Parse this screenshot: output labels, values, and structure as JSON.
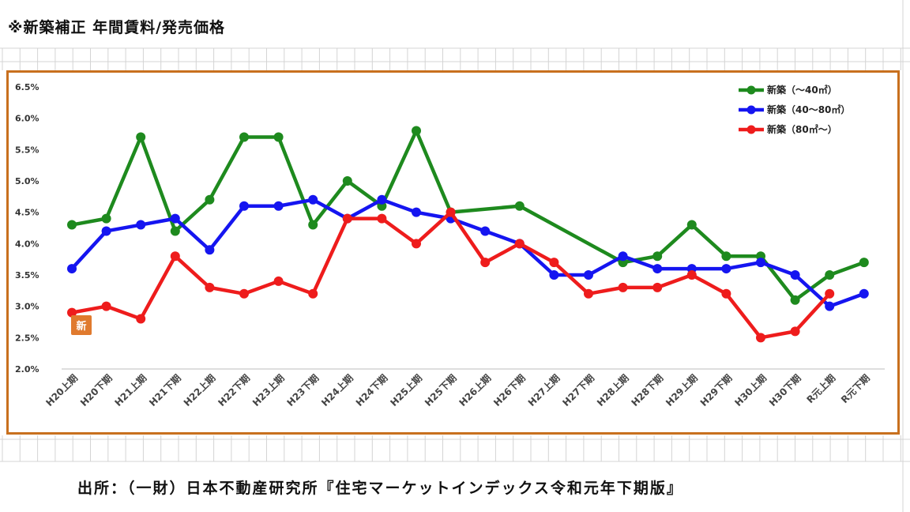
{
  "page": {
    "title": "※新築補正 年間賃料/発売価格",
    "source": "出所：（一財）日本不動産研究所『住宅マーケットインデックス令和元年下期版』"
  },
  "stamp": {
    "text": "新",
    "color": "#e07a2e"
  },
  "colors": {
    "frame": "#c8701e",
    "grid": "#d4d4d4",
    "axis": "#bdbdbd"
  },
  "chart_data": {
    "type": "line",
    "title": "",
    "xlabel": "",
    "ylabel": "",
    "categories": [
      "H20上期",
      "H20下期",
      "H21上期",
      "H21下期",
      "H22上期",
      "H22下期",
      "H23上期",
      "H23下期",
      "H24上期",
      "H24下期",
      "H25上期",
      "H25下期",
      "H26上期",
      "H26下期",
      "H27上期",
      "H27下期",
      "H28上期",
      "H28下期",
      "H29上期",
      "H29下期",
      "H30上期",
      "H30下期",
      "R元上期",
      "R元下期"
    ],
    "ylim": [
      2.0,
      6.5
    ],
    "yticks": [
      2.0,
      2.5,
      3.0,
      3.5,
      4.0,
      4.5,
      5.0,
      5.5,
      6.0,
      6.5
    ],
    "ytick_labels": [
      "2.0%",
      "2.5%",
      "3.0%",
      "3.5%",
      "4.0%",
      "4.5%",
      "5.0%",
      "5.5%",
      "6.0%",
      "6.5%"
    ],
    "grid": false,
    "legend_position": "top-right",
    "series": [
      {
        "name": "新築（～40㎡）",
        "color": "#1e8a1e",
        "values": [
          4.3,
          4.4,
          5.7,
          4.2,
          4.7,
          5.7,
          5.7,
          4.3,
          5.0,
          4.6,
          5.8,
          4.5,
          null,
          4.6,
          null,
          null,
          3.7,
          3.8,
          4.3,
          3.8,
          3.8,
          3.1,
          3.5,
          3.7
        ]
      },
      {
        "name": "新築（40～80㎡）",
        "color": "#1515f0",
        "values": [
          3.6,
          4.2,
          4.3,
          4.4,
          3.9,
          4.6,
          4.6,
          4.7,
          4.4,
          4.7,
          4.5,
          4.4,
          4.2,
          4.0,
          3.5,
          3.5,
          3.8,
          3.6,
          3.6,
          3.6,
          3.7,
          3.5,
          3.0,
          3.2
        ]
      },
      {
        "name": "新築（80㎡～）",
        "color": "#ee1c1c",
        "values": [
          2.9,
          3.0,
          2.8,
          3.8,
          3.3,
          3.2,
          3.4,
          3.2,
          4.4,
          4.4,
          4.0,
          4.5,
          3.7,
          4.0,
          3.7,
          3.2,
          3.3,
          3.3,
          3.5,
          3.2,
          2.5,
          2.6,
          3.2,
          null
        ]
      }
    ]
  }
}
